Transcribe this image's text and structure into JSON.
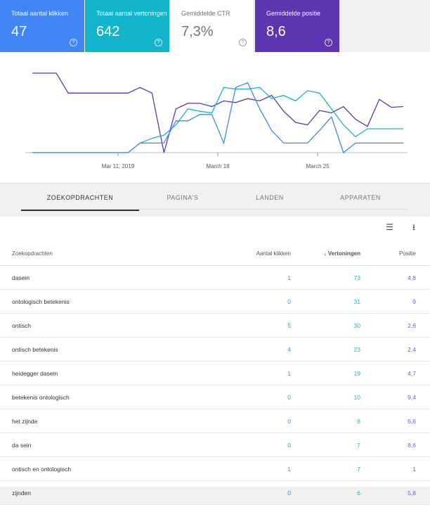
{
  "cards": [
    {
      "label": "Totaal aantal klikken",
      "value": "47"
    },
    {
      "label": "Totaal aantal vertoningen",
      "value": "642"
    },
    {
      "label": "Gemiddelde CTR",
      "value": "7,3%"
    },
    {
      "label": "Gemiddelde positie",
      "value": "8,6"
    }
  ],
  "help_glyph": "?",
  "chart_data": {
    "type": "line",
    "x_tick_labels": [
      "Mar 11, 2019",
      "March 18",
      "March 25"
    ],
    "series": [
      {
        "color": "#5e35b1",
        "values": [
          1.0,
          1.0,
          1.0,
          0.75,
          0.75,
          0.75,
          0.75,
          0.75,
          0.75,
          0.82,
          0.75,
          0.0,
          0.55,
          0.62,
          0.62,
          0.58,
          0.65,
          0.63,
          0.68,
          0.65,
          0.72,
          0.52,
          0.38,
          0.35,
          0.53,
          0.5,
          0.58,
          0.42,
          0.33,
          0.67,
          0.57,
          0.58
        ]
      },
      {
        "color": "#12b5cb",
        "values": [
          0,
          0,
          0,
          0,
          0,
          0,
          0,
          0,
          0,
          0.12,
          0.18,
          0.22,
          0.35,
          0.55,
          0.52,
          0.5,
          0.82,
          0.8,
          0.8,
          0.82,
          0.68,
          0.72,
          0.65,
          0.78,
          0.75,
          0.55,
          0.35,
          0.2,
          0.3,
          0.3,
          0.3,
          0.3
        ]
      },
      {
        "color": "#4285f4",
        "values": [
          0,
          0,
          0,
          0,
          0,
          0,
          0,
          0,
          0,
          0.12,
          0.12,
          0.12,
          0.4,
          0.4,
          0.48,
          0.48,
          0.12,
          0.82,
          0.88,
          0.55,
          0.28,
          0.12,
          0.12,
          0.12,
          0.28,
          0.45,
          0.0,
          0.12,
          0.12,
          0.12,
          0.12,
          0.12
        ]
      }
    ]
  },
  "tabs": [
    "ZOEKOPDRACHTEN",
    "PAGINA'S",
    "LANDEN",
    "APPARATEN"
  ],
  "tools": {
    "filter_glyph": "☰",
    "download_glyph": "⭳"
  },
  "table": {
    "headers": {
      "query": "Zoekopdrachten",
      "clicks": "Aantal klikken",
      "impressions": "Vertoningen",
      "position": "Positie",
      "sort_glyph": "↓"
    },
    "rows": [
      {
        "query": "dasein",
        "clicks": "1",
        "impressions": "73",
        "position": "4,8"
      },
      {
        "query": "ontologisch betekenis",
        "clicks": "0",
        "impressions": "31",
        "position": "9"
      },
      {
        "query": "ontisch",
        "clicks": "5",
        "impressions": "30",
        "position": "2,6"
      },
      {
        "query": "ontisch betekenis",
        "clicks": "4",
        "impressions": "23",
        "position": "2,4"
      },
      {
        "query": "heidegger dasein",
        "clicks": "1",
        "impressions": "19",
        "position": "4,7"
      },
      {
        "query": "betekenis ontologisch",
        "clicks": "0",
        "impressions": "10",
        "position": "9,4"
      },
      {
        "query": "het zijnde",
        "clicks": "0",
        "impressions": "8",
        "position": "6,6"
      },
      {
        "query": "da sein",
        "clicks": "0",
        "impressions": "7",
        "position": "8,6"
      },
      {
        "query": "ontisch en ontologisch",
        "clicks": "1",
        "impressions": "7",
        "position": "1"
      },
      {
        "query": "zijnden",
        "clicks": "0",
        "impressions": "6",
        "position": "5,8"
      }
    ]
  }
}
